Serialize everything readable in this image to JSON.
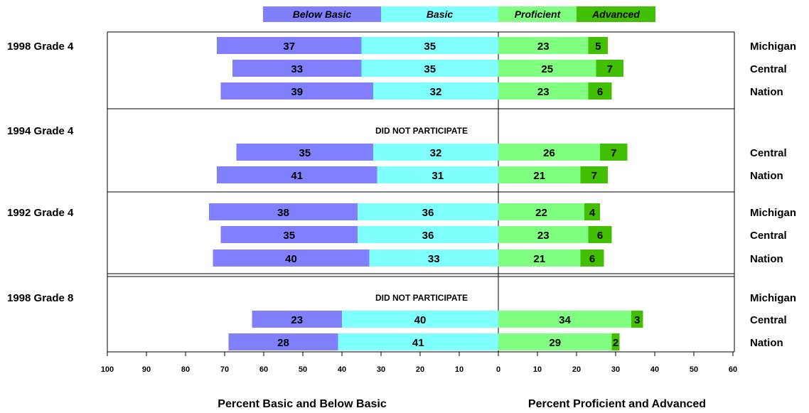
{
  "chart_data": {
    "type": "bar",
    "orientation": "horizontal-diverging",
    "legend": {
      "placement": "top-center",
      "entries": [
        {
          "name": "Below Basic",
          "color": "#8080ff"
        },
        {
          "name": "Basic",
          "color": "#80ffff"
        },
        {
          "name": "Proficient",
          "color": "#80ff80"
        },
        {
          "name": "Advanced",
          "color": "#40c000"
        }
      ]
    },
    "xlabel_left": "Percent Basic and Below Basic",
    "xlabel_right": "Percent Proficient and Advanced",
    "xlim": [
      -100,
      60
    ],
    "xticks": [
      "100",
      "90",
      "80",
      "70",
      "60",
      "50",
      "40",
      "30",
      "20",
      "10",
      "0",
      "10",
      "20",
      "30",
      "40",
      "50",
      "60"
    ],
    "panels": [
      {
        "label": "1998 Grade 4",
        "note": "",
        "rows": [
          {
            "name": "Michigan",
            "below_basic": 37,
            "basic": 35,
            "proficient": 23,
            "advanced": 5
          },
          {
            "name": "Central",
            "below_basic": 33,
            "basic": 35,
            "proficient": 25,
            "advanced": 7
          },
          {
            "name": "Nation",
            "below_basic": 39,
            "basic": 32,
            "proficient": 23,
            "advanced": 6
          }
        ]
      },
      {
        "label": "1994 Grade 4",
        "note": "DID NOT PARTICIPATE",
        "rows": [
          {
            "name": "",
            "missing": true
          },
          {
            "name": "Central",
            "below_basic": 35,
            "basic": 32,
            "proficient": 26,
            "advanced": 7
          },
          {
            "name": "Nation",
            "below_basic": 41,
            "basic": 31,
            "proficient": 21,
            "advanced": 7
          }
        ]
      },
      {
        "label": "1992 Grade 4",
        "note": "",
        "rows": [
          {
            "name": "Michigan",
            "below_basic": 38,
            "basic": 36,
            "proficient": 22,
            "advanced": 4
          },
          {
            "name": "Central",
            "below_basic": 35,
            "basic": 36,
            "proficient": 23,
            "advanced": 6
          },
          {
            "name": "Nation",
            "below_basic": 40,
            "basic": 33,
            "proficient": 21,
            "advanced": 6
          }
        ]
      },
      {
        "label": "1998 Grade 8",
        "note": "DID NOT PARTICIPATE",
        "rows": [
          {
            "name": "Michigan",
            "missing": true
          },
          {
            "name": "Central",
            "below_basic": 23,
            "basic": 40,
            "proficient": 34,
            "advanced": 3
          },
          {
            "name": "Nation",
            "below_basic": 28,
            "basic": 41,
            "proficient": 29,
            "advanced": 2
          }
        ]
      }
    ]
  }
}
